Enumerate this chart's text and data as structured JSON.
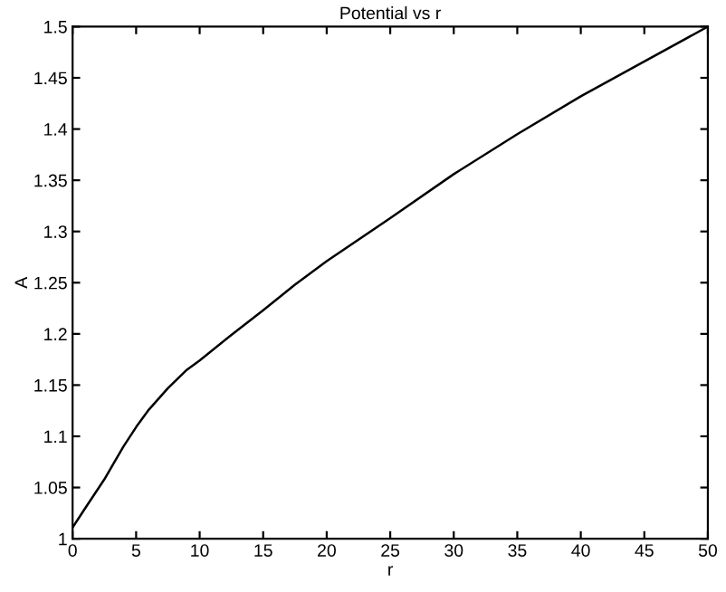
{
  "chart_data": {
    "type": "line",
    "title": "Potential vs r",
    "xlabel": "r",
    "ylabel": "A",
    "x": [
      0,
      1,
      2.5,
      4,
      5,
      6,
      7.5,
      9,
      10,
      12.5,
      15,
      17.5,
      20,
      25,
      30,
      35,
      40,
      45,
      50
    ],
    "series": [
      {
        "color": "#000000",
        "values": [
          1.011,
          1.03,
          1.058,
          1.09,
          1.109,
          1.126,
          1.147,
          1.165,
          1.174,
          1.199,
          1.223,
          1.248,
          1.271,
          1.313,
          1.356,
          1.395,
          1.432,
          1.466,
          1.5
        ]
      }
    ],
    "xlim": [
      0,
      50
    ],
    "xticks": [
      0,
      5,
      10,
      15,
      20,
      25,
      30,
      35,
      40,
      45,
      50
    ],
    "ylim": [
      1,
      1.5
    ],
    "yticks": [
      1,
      1.05,
      1.1,
      1.15,
      1.2,
      1.25,
      1.3,
      1.35,
      1.4,
      1.45,
      1.5
    ],
    "grid": false,
    "legend": false,
    "marker": "none",
    "line_style": "solid"
  }
}
